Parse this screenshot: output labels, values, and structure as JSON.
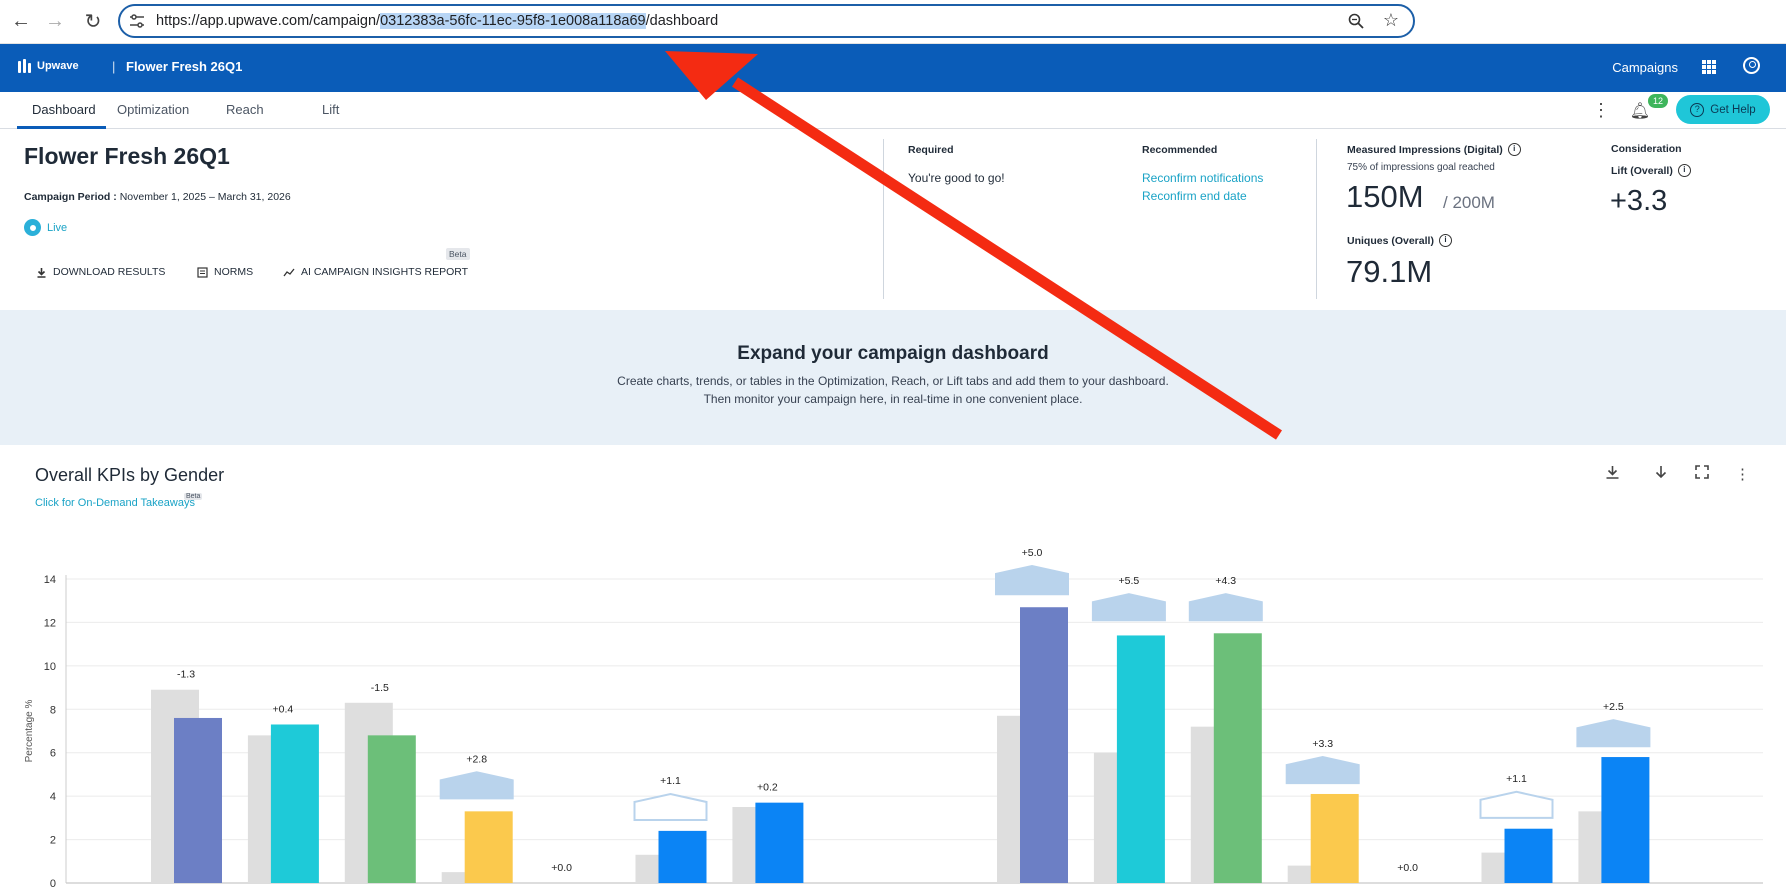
{
  "browser": {
    "url_prefix": "https://app.upwave.com/campaign/",
    "url_selected": "0312383a-56fc-11ec-95f8-1e008a118a69",
    "url_suffix": "/dashboard"
  },
  "header": {
    "logo": "Upwave",
    "separator": "|",
    "title": "Flower Fresh 26Q1",
    "campaigns": "Campaigns"
  },
  "tabs": [
    {
      "label": "Dashboard",
      "active": true
    },
    {
      "label": "Optimization"
    },
    {
      "label": "Reach"
    },
    {
      "label": "Lift"
    }
  ],
  "toolbar": {
    "notification_count": "12",
    "help_label": "Get Help"
  },
  "summary": {
    "title": "Flower Fresh 26Q1",
    "period_label": "Campaign Period :",
    "period_value": "November 1, 2025 – March 31, 2026",
    "status": "Live",
    "actions": {
      "download": "DOWNLOAD RESULTS",
      "norms": "NORMS",
      "ai_report": "AI CAMPAIGN INSIGHTS REPORT",
      "beta": "Beta"
    },
    "required": {
      "heading": "Required",
      "value": "You're good to go!"
    },
    "recommended": {
      "heading": "Recommended",
      "links": [
        "Reconfirm notifications",
        "Reconfirm end date"
      ]
    },
    "impressions": {
      "heading": "Measured Impressions (Digital)",
      "sub": "75% of impressions goal reached",
      "value": "150M",
      "goal": "/ 200M"
    },
    "uniques": {
      "heading": "Uniques (Overall)",
      "value": "79.1M"
    },
    "consideration": {
      "heading": "Consideration",
      "lift_label": "Lift (Overall)",
      "value": "+3.3"
    }
  },
  "expand": {
    "title": "Expand your campaign dashboard",
    "line1": "Create charts, trends, or tables in the Optimization, Reach, or Lift tabs and add them to your dashboard.",
    "line2": "Then monitor your campaign here, in real-time in one convenient place."
  },
  "card": {
    "title": "Overall KPIs by Gender",
    "link": "Click for On-Demand Takeaways",
    "beta": "Beta"
  },
  "chart_data": {
    "type": "bar",
    "title": "Overall KPIs by Gender",
    "ylabel": "Percentage %",
    "ylim": [
      0,
      14
    ],
    "yticks": [
      0,
      2,
      4,
      6,
      8,
      10,
      12,
      14
    ],
    "grid": true,
    "colors": {
      "control": "#dedede",
      "ci": "#b9d3ec",
      "kpis": [
        "#6c7fc5",
        "#1ecad8",
        "#6cbf79",
        "#fbc94d",
        "#bd1a62",
        "#0b84f5"
      ]
    },
    "groups": [
      {
        "kpis": [
          {
            "control": 8.9,
            "exposed": 7.6,
            "lift": "-1.3"
          },
          {
            "control": 6.8,
            "exposed": 7.3,
            "lift": "+0.4"
          },
          {
            "control": 8.3,
            "exposed": 6.8,
            "lift": "-1.5"
          },
          {
            "control": 0.5,
            "exposed": 3.3,
            "lift": "+2.8",
            "ci": [
              3.9,
              5.1
            ],
            "ci_filled": true
          },
          {
            "control": 0.0,
            "exposed": 0.0,
            "lift": "+0.0"
          },
          {
            "control": 1.3,
            "exposed": 2.4,
            "lift": "+1.1",
            "ci": [
              2.9,
              4.1
            ],
            "ci_filled": false
          },
          {
            "control": 3.5,
            "exposed": 3.7,
            "lift": "+0.2"
          }
        ]
      },
      {
        "kpis": [
          {
            "control": 7.7,
            "exposed": 12.7,
            "lift": "+5.0",
            "ci": [
              13.3,
              14.6
            ],
            "ci_filled": true
          },
          {
            "control": 6.0,
            "exposed": 11.4,
            "lift": "+5.5",
            "ci": [
              12.1,
              13.3
            ],
            "ci_filled": true
          },
          {
            "control": 7.2,
            "exposed": 11.5,
            "lift": "+4.3",
            "ci": [
              12.1,
              13.3
            ],
            "ci_filled": true
          },
          {
            "control": 0.8,
            "exposed": 4.1,
            "lift": "+3.3",
            "ci": [
              4.6,
              5.8
            ],
            "ci_filled": true
          },
          {
            "control": 0.0,
            "exposed": 0.0,
            "lift": "+0.0"
          },
          {
            "control": 1.4,
            "exposed": 2.5,
            "lift": "+1.1",
            "ci": [
              3.0,
              4.2
            ],
            "ci_filled": false
          },
          {
            "control": 3.3,
            "exposed": 5.8,
            "lift": "+2.5",
            "ci": [
              6.3,
              7.5
            ],
            "ci_filled": true
          }
        ]
      }
    ]
  }
}
